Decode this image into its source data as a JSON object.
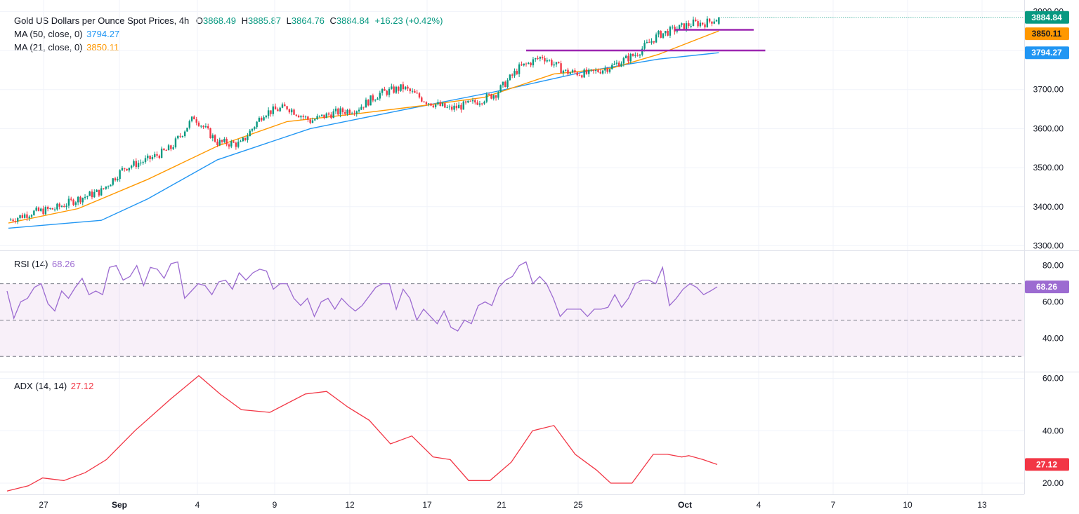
{
  "header": {
    "title": "Gold US Dollars per Ounce Spot Prices, 4h",
    "o_label": "O",
    "o": "3868.49",
    "h_label": "H",
    "h": "3885.87",
    "l_label": "L",
    "l": "3864.76",
    "c_label": "C",
    "c": "3884.84",
    "change": "+16.23 (+0.42%)"
  },
  "legends": {
    "ma50": {
      "label": "MA (50, close, 0)",
      "value": "3794.27",
      "color": "#2196f3"
    },
    "ma21": {
      "label": "MA (21, close, 0)",
      "value": "3850.11",
      "color": "#ff9800"
    },
    "rsi": {
      "label": "RSI (14)",
      "value": "68.26",
      "color": "#9c6bd1"
    },
    "adx": {
      "label": "ADX (14, 14)",
      "value": "27.12",
      "color": "#f23645"
    }
  },
  "badges": {
    "price": "3884.84",
    "ma21": "3850.11",
    "ma50": "3794.27",
    "rsi": "68.26",
    "adx": "27.12"
  },
  "colors": {
    "up": "#089981",
    "down": "#f23645",
    "level": "#9c27b0"
  },
  "chart_data": [
    {
      "type": "candlestick",
      "title": "Gold US Dollars per Ounce Spot Prices, 4h",
      "ylim": [
        3290,
        3915
      ],
      "y_ticks": [
        "3900.00",
        "3800.00",
        "3700.00",
        "3600.00",
        "3500.00",
        "3400.00",
        "3300.00"
      ],
      "x_ticks": [
        "27",
        "Sep",
        "4",
        "9",
        "12",
        "17",
        "21",
        "25",
        "Oct",
        "4",
        "7",
        "10",
        "13"
      ],
      "close_path": [
        [
          0,
          3365
        ],
        [
          10,
          3385
        ],
        [
          20,
          3395
        ],
        [
          30,
          3420
        ],
        [
          40,
          3440
        ],
        [
          50,
          3500
        ],
        [
          60,
          3520
        ],
        [
          70,
          3550
        ],
        [
          80,
          3630
        ],
        [
          90,
          3565
        ],
        [
          100,
          3560
        ],
        [
          110,
          3640
        ],
        [
          120,
          3655
        ],
        [
          130,
          3620
        ],
        [
          140,
          3640
        ],
        [
          150,
          3650
        ],
        [
          160,
          3690
        ],
        [
          170,
          3705
        ],
        [
          180,
          3670
        ],
        [
          190,
          3650
        ],
        [
          200,
          3665
        ],
        [
          210,
          3690
        ],
        [
          220,
          3755
        ],
        [
          230,
          3785
        ],
        [
          240,
          3745
        ],
        [
          250,
          3740
        ],
        [
          260,
          3760
        ],
        [
          270,
          3790
        ],
        [
          280,
          3840
        ],
        [
          290,
          3860
        ],
        [
          295,
          3870
        ],
        [
          300,
          3870
        ],
        [
          306,
          3885
        ]
      ],
      "last": {
        "open": 3868.49,
        "high": 3885.87,
        "low": 3864.76,
        "close": 3884.84
      },
      "levels": [
        {
          "value": 3800,
          "from_bar": 223,
          "to_bar": 326
        },
        {
          "value": 3853,
          "from_bar": 287,
          "to_bar": 321
        }
      ],
      "series": [
        {
          "name": "MA (50, close, 0)",
          "last": 3794.27,
          "path": [
            [
              0,
              3345
            ],
            [
              40,
              3365
            ],
            [
              60,
              3420
            ],
            [
              90,
              3520
            ],
            [
              130,
              3600
            ],
            [
              170,
              3648
            ],
            [
              210,
              3695
            ],
            [
              250,
              3748
            ],
            [
              280,
              3778
            ],
            [
              306,
              3794.27
            ]
          ]
        },
        {
          "name": "MA (21, close, 0)",
          "last": 3850.11,
          "path": [
            [
              0,
              3358
            ],
            [
              30,
              3395
            ],
            [
              60,
              3470
            ],
            [
              90,
              3555
            ],
            [
              120,
              3618
            ],
            [
              150,
              3638
            ],
            [
              180,
              3660
            ],
            [
              205,
              3680
            ],
            [
              235,
              3740
            ],
            [
              260,
              3755
            ],
            [
              280,
              3790
            ],
            [
              306,
              3850.11
            ]
          ]
        }
      ]
    },
    {
      "type": "line",
      "title": "RSI (14)",
      "ylim": [
        22,
        88
      ],
      "y_ticks": [
        "80.00",
        "60.00",
        "40.00"
      ],
      "guides": [
        70,
        50,
        30
      ],
      "series": [
        {
          "name": "RSI (14)",
          "last": 68.26,
          "values": [
            66,
            51,
            60,
            62,
            68,
            70,
            59,
            55,
            66,
            62,
            68,
            73,
            64,
            66,
            64,
            79,
            80,
            72,
            74,
            80,
            69,
            79,
            78,
            73,
            81,
            82,
            62,
            66,
            70,
            69,
            64,
            71,
            72,
            67,
            76,
            72,
            76,
            78,
            77,
            67,
            70,
            70,
            62,
            58,
            62,
            52,
            60,
            62,
            56,
            62,
            58,
            55,
            58,
            63,
            68,
            70,
            70,
            56,
            67,
            62,
            50,
            56,
            52,
            48,
            55,
            46,
            44,
            50,
            48,
            58,
            60,
            58,
            68,
            72,
            74,
            80,
            82,
            70,
            74,
            70,
            62,
            52,
            56,
            56,
            56,
            52,
            56,
            56,
            57,
            64,
            57,
            62,
            70,
            72,
            72,
            70,
            79,
            58,
            62,
            67,
            70,
            68,
            64,
            66,
            68.26
          ]
        }
      ]
    },
    {
      "type": "line",
      "title": "ADX (14, 14)",
      "ylim": [
        16,
        62
      ],
      "y_ticks": [
        "60.00",
        "40.00",
        "20.00"
      ],
      "series": [
        {
          "name": "ADX (14, 14)",
          "last": 27.12,
          "path": [
            [
              0,
              17
            ],
            [
              15,
              19
            ],
            [
              25,
              22
            ],
            [
              40,
              21
            ],
            [
              55,
              24
            ],
            [
              70,
              29
            ],
            [
              90,
              40
            ],
            [
              115,
              52
            ],
            [
              135,
              61
            ],
            [
              150,
              54
            ],
            [
              165,
              48
            ],
            [
              185,
              47
            ],
            [
              210,
              54
            ],
            [
              225,
              55
            ],
            [
              240,
              49
            ],
            [
              255,
              44
            ],
            [
              270,
              35
            ],
            [
              285,
              38
            ],
            [
              300,
              30
            ],
            [
              312,
              29
            ],
            [
              325,
              21
            ],
            [
              340,
              21
            ],
            [
              355,
              28
            ],
            [
              370,
              40
            ],
            [
              385,
              42
            ],
            [
              400,
              31
            ],
            [
              415,
              25
            ],
            [
              425,
              20
            ],
            [
              440,
              20
            ],
            [
              455,
              31
            ],
            [
              465,
              31
            ],
            [
              475,
              30
            ],
            [
              480,
              30.5
            ],
            [
              490,
              29
            ],
            [
              500,
              27.12
            ]
          ]
        }
      ]
    }
  ]
}
